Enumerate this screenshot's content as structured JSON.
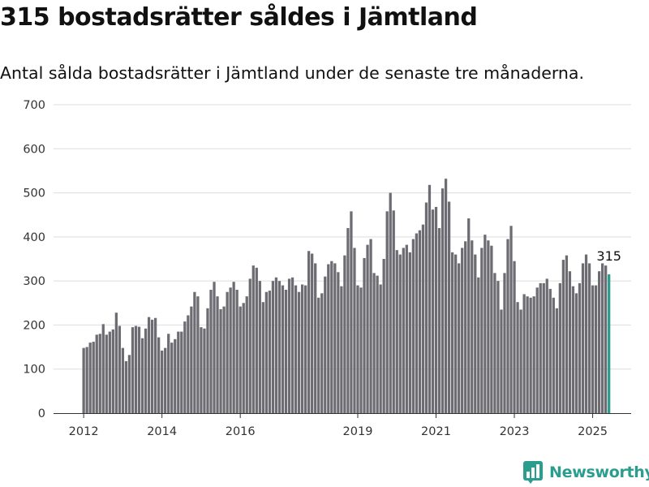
{
  "header": {
    "title": "315 bostadsrätter såldes i Jämtland",
    "subtitle": "Antal sålda bostadsrätter i Jämtland under de senaste tre månaderna."
  },
  "colors": {
    "bar": "#6d6c72",
    "highlight": "#2a9d8f",
    "grid": "#dddddd",
    "axis": "#333333",
    "brand": "#2a9d8f"
  },
  "logo": {
    "text": "Newsworthy",
    "icon": "bar-chart-icon"
  },
  "chart_data": {
    "type": "bar",
    "title": "",
    "xlabel": "",
    "ylabel": "",
    "ylim": [
      0,
      700
    ],
    "yticks": [
      "0",
      "100",
      "200",
      "300",
      "400",
      "500",
      "600",
      "700"
    ],
    "xticks": [
      "2012",
      "2014",
      "2016",
      "2019",
      "2021",
      "2023",
      "2025"
    ],
    "grid": true,
    "annotation": {
      "label": "315",
      "value": 315
    },
    "series": [
      {
        "values": [
          148,
          150,
          160,
          162,
          178,
          180,
          202,
          178,
          185,
          190,
          228,
          198,
          148,
          118,
          132,
          195,
          198,
          196,
          170,
          192,
          218,
          212,
          216,
          172,
          142,
          148,
          180,
          160,
          168,
          185,
          185,
          208,
          222,
          242,
          275,
          265,
          195,
          192,
          238,
          280,
          298,
          265,
          236,
          242,
          275,
          285,
          298,
          280,
          242,
          250,
          265,
          305,
          335,
          330,
          300,
          252,
          275,
          278,
          300,
          308,
          300,
          290,
          280,
          305,
          308,
          290,
          275,
          292,
          290,
          368,
          362,
          340,
          262,
          272,
          310,
          338,
          345,
          340,
          320,
          288,
          358,
          420,
          458,
          375,
          290,
          285,
          352,
          382,
          395,
          318,
          312,
          292,
          350,
          458,
          500,
          460,
          370,
          360,
          375,
          382,
          365,
          395,
          408,
          415,
          428,
          478,
          518,
          462,
          468,
          420,
          510,
          532,
          480,
          365,
          360,
          340,
          375,
          390,
          442,
          392,
          360,
          308,
          375,
          405,
          392,
          380,
          318,
          300,
          235,
          318,
          395,
          425,
          345,
          252,
          235,
          270,
          265,
          262,
          265,
          285,
          295,
          295,
          305,
          282,
          262,
          238,
          295,
          348,
          358,
          322,
          288,
          272,
          295,
          340,
          360,
          340,
          290,
          290,
          322,
          340,
          335,
          315
        ]
      }
    ]
  }
}
